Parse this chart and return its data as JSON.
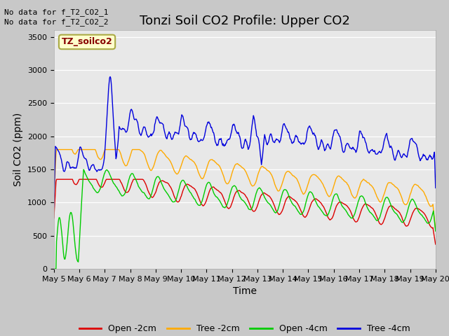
{
  "title": "Tonzi Soil CO2 Profile: Upper CO2",
  "ylabel": "Soil CO2 (ppm)",
  "xlabel": "Time",
  "no_data_text": [
    "No data for f_T2_CO2_1",
    "No data for f_T2_CO2_2"
  ],
  "legend_label": "TZ_soilco2",
  "ylim": [
    0,
    3600
  ],
  "yticks": [
    0,
    500,
    1000,
    1500,
    2000,
    2500,
    3000,
    3500
  ],
  "series_labels": [
    "Open -2cm",
    "Tree -2cm",
    "Open -4cm",
    "Tree -4cm"
  ],
  "series_colors": [
    "#dd0000",
    "#ffaa00",
    "#00cc00",
    "#0000dd"
  ],
  "fig_facecolor": "#c8c8c8",
  "ax_facecolor": "#e8e8e8",
  "title_fontsize": 13,
  "axis_fontsize": 10,
  "tick_fontsize": 8,
  "lw": 1.0
}
